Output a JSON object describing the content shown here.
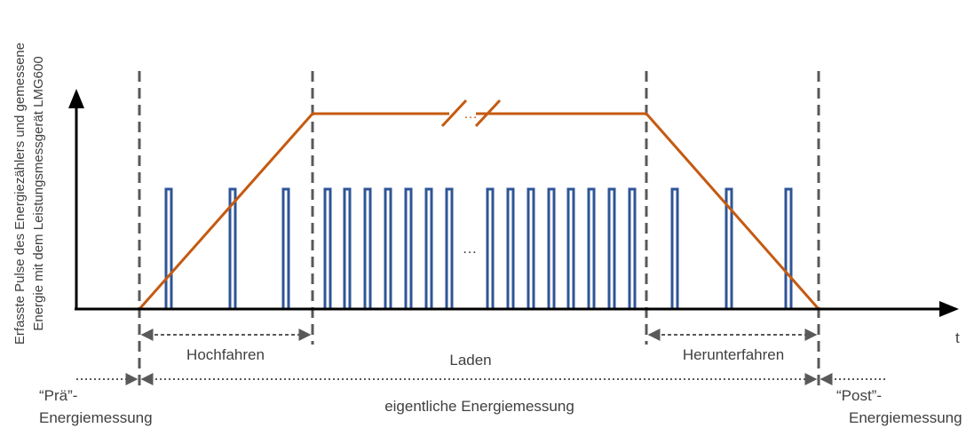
{
  "y_axis_label": {
    "line1": "Erfasste Pulse des Energiezählers und gemessene",
    "line2": "Energie mit dem Leistungsmessgerät LMG600"
  },
  "x_axis_label": "t",
  "phases": {
    "ramp_up": "Hochfahren",
    "charging": "Laden",
    "ramp_down": "Herunterfahren"
  },
  "measurements": {
    "pre_line1": "“Prä”-",
    "pre_line2": "Energiemessung",
    "main": "eigentliche Energiemessung",
    "post_line1": "“Post”-",
    "post_line2": "Energiemessung"
  },
  "ellipsis_pulses": "…",
  "ellipsis_energy": "…",
  "colors": {
    "energy_line": "#C55A11",
    "pulses": "#2F5597",
    "axes": "#000000",
    "dividers": "#595959",
    "text": "#404040"
  }
}
